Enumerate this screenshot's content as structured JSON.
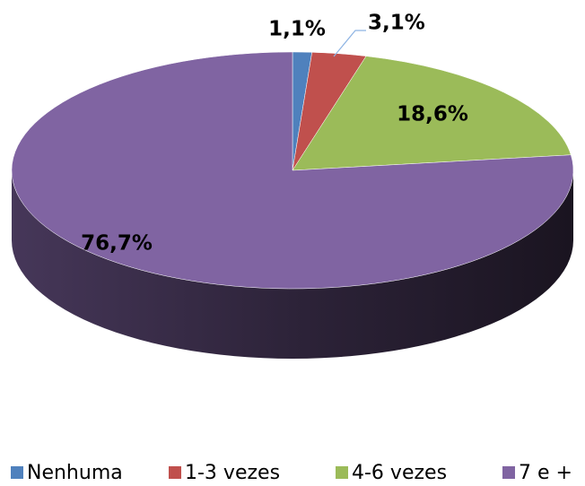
{
  "chart_data": {
    "type": "pie",
    "categories": [
      "Nenhuma",
      "1-3 vezes",
      "4-6 vezes",
      "7 e +"
    ],
    "values": [
      1.1,
      3.1,
      18.6,
      76.7
    ],
    "value_labels": [
      "1,1%",
      "3,1%",
      "18,6%",
      "76,7%"
    ],
    "colors": [
      "#4f81bd",
      "#c0504d",
      "#9bbb59",
      "#8064a2"
    ],
    "legend": "bottom"
  }
}
